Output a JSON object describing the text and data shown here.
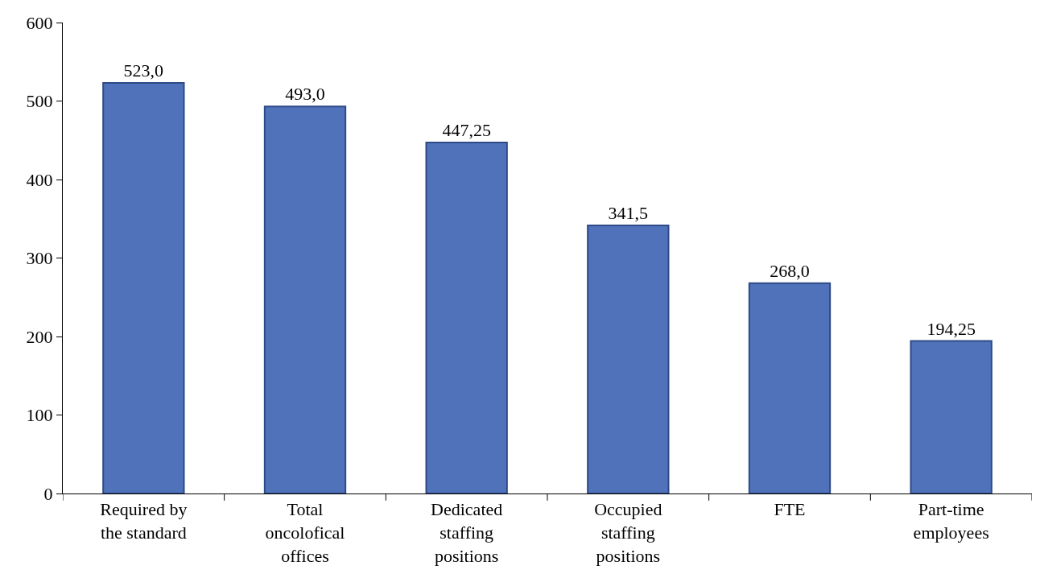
{
  "chart_data": {
    "type": "bar",
    "categories": [
      "Required by the standard",
      "Total oncolofical offices",
      "Dedicated staffing positions",
      "Occupied staffing positions",
      "FTE",
      "Part-time employees"
    ],
    "values": [
      523,
      493,
      447.25,
      341.5,
      268,
      194.25
    ],
    "value_labels": [
      "523,0",
      "493,0",
      "447,25",
      "341,5",
      "268,0",
      "194,25"
    ],
    "color": "#4f72ba",
    "ylim": [
      0,
      600
    ],
    "yticks": [
      0,
      100,
      200,
      300,
      400,
      500,
      600
    ],
    "grid": false,
    "legend": false
  }
}
